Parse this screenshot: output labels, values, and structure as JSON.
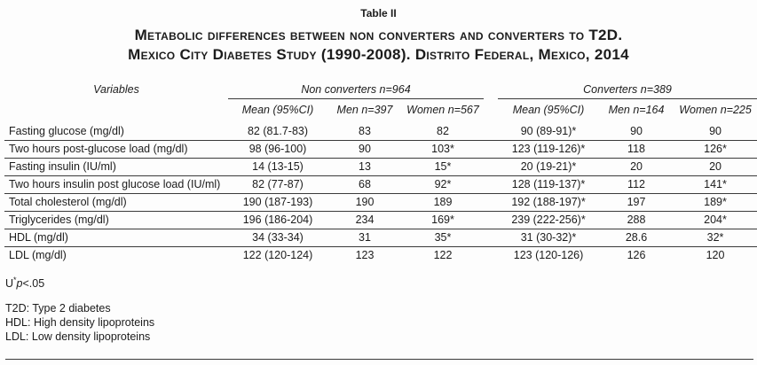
{
  "title": {
    "label": "Table II",
    "heading_line1": "Metabolic differences between non converters and converters to T2D.",
    "heading_line2": "Mexico City Diabetes Study (1990-2008). Distrito Federal, Mexico, 2014"
  },
  "table": {
    "variables_header": "Variables",
    "groups": [
      {
        "label": "Non converters n=964",
        "subheaders": [
          "Mean (95%CI)",
          "Men n=397",
          "Women n=567"
        ]
      },
      {
        "label": "Converters n=389",
        "subheaders": [
          "Mean (95%CI)",
          "Men n=164",
          "Women n=225"
        ]
      }
    ],
    "rows": [
      {
        "variable": "Fasting glucose (mg/dl)",
        "cells": [
          "82 (81.7-83)",
          "83",
          "82",
          "90 (89-91)*",
          "90",
          "90"
        ]
      },
      {
        "variable": "Two hours post-glucose load (mg/dl)",
        "cells": [
          "98 (96-100)",
          "90",
          "103*",
          "123 (119-126)*",
          "118",
          "126*"
        ]
      },
      {
        "variable": "Fasting insulin (IU/ml)",
        "cells": [
          "14 (13-15)",
          "13",
          "15*",
          "20 (19-21)*",
          "20",
          "20"
        ]
      },
      {
        "variable": "Two hours insulin post glucose load (IU/ml)",
        "cells": [
          "82 (77-87)",
          "68",
          "92*",
          "128 (119-137)*",
          "112",
          "141*"
        ]
      },
      {
        "variable": "Total cholesterol (mg/dl)",
        "cells": [
          "190 (187-193)",
          "190",
          "189",
          "192 (188-197)*",
          "197",
          "189*"
        ]
      },
      {
        "variable": "Triglycerides (mg/dl)",
        "cells": [
          "196 (186-204)",
          "234",
          "169*",
          "239 (222-256)*",
          "288",
          "204*"
        ]
      },
      {
        "variable": "HDL (mg/dl)",
        "cells": [
          "34 (33-34)",
          "31",
          "35*",
          "31 (30-32)*",
          "28.6",
          "32*"
        ]
      },
      {
        "variable": "LDL (mg/dl)",
        "cells": [
          "122 (120-124)",
          "123",
          "122",
          "123 (120-126)",
          "126",
          "120"
        ]
      }
    ]
  },
  "footnotes": {
    "significance": {
      "prefix": "U",
      "star": "*",
      "p": "p",
      "comparison": "<.05"
    },
    "abbreviations": [
      "T2D: Type 2 diabetes",
      "HDL: High density lipoproteins",
      "LDL: Low density lipoproteins"
    ]
  },
  "colors": {
    "text": "#1c1c1c",
    "rule": "#3a3a3a",
    "background": "#fdfdfd"
  }
}
